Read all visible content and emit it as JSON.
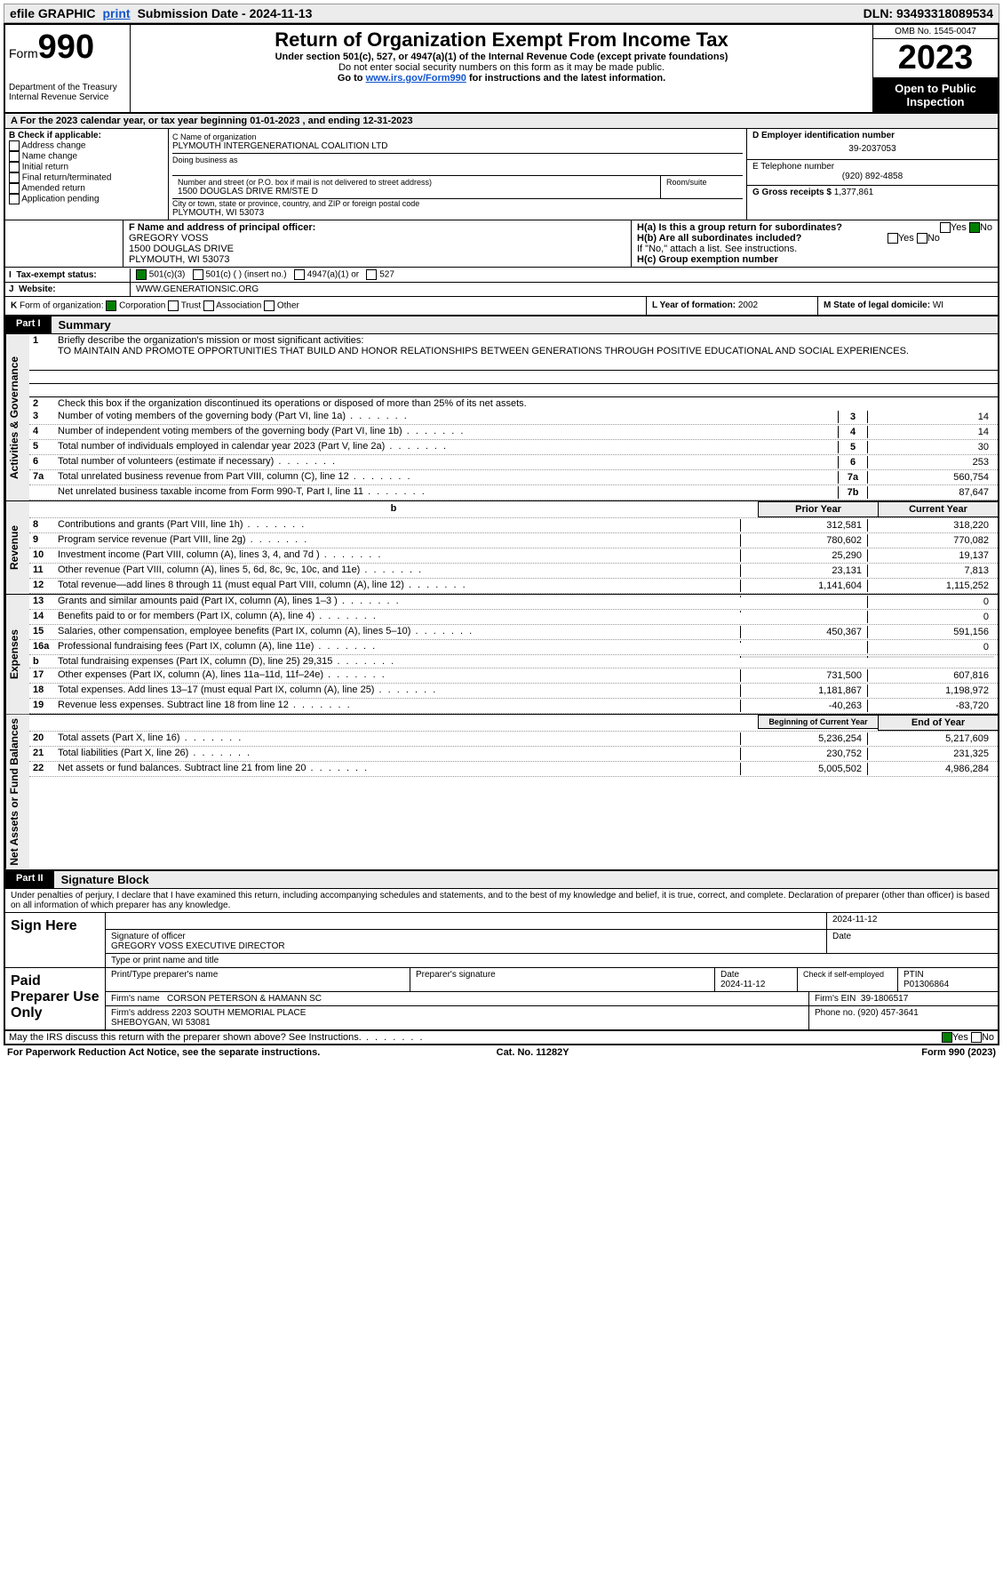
{
  "topbar": {
    "efile": "efile GRAPHIC",
    "print": "print",
    "submission_label": "Submission Date - ",
    "submission_date": "2024-11-13",
    "dln_label": "DLN: ",
    "dln": "93493318089534"
  },
  "header": {
    "form_word": "Form",
    "form990": "990",
    "dept": "Department of the Treasury\nInternal Revenue Service",
    "title": "Return of Organization Exempt From Income Tax",
    "sub1": "Under section 501(c), 527, or 4947(a)(1) of the Internal Revenue Code (except private foundations)",
    "sub2": "Do not enter social security numbers on this form as it may be made public.",
    "sub3_pre": "Go to ",
    "sub3_link": "www.irs.gov/Form990",
    "sub3_post": " for instructions and the latest information.",
    "omb": "OMB No. 1545-0047",
    "year": "2023",
    "open": "Open to Public Inspection"
  },
  "taxyear": {
    "label_a": "A For the 2023 calendar year, or tax year beginning ",
    "begin": "01-01-2023",
    "mid": " , and ending ",
    "end": "12-31-2023"
  },
  "boxB": {
    "label": "B Check if applicable:",
    "opts": [
      "Address change",
      "Name change",
      "Initial return",
      "Final return/terminated",
      "Amended return",
      "Application pending"
    ]
  },
  "boxC": {
    "name_label": "C Name of organization",
    "name": "PLYMOUTH INTERGENERATIONAL COALITION LTD",
    "dba_label": "Doing business as",
    "street_label": "Number and street (or P.O. box if mail is not delivered to street address)",
    "suite_label": "Room/suite",
    "street": "1500 DOUGLAS DRIVE RM/STE D",
    "city_label": "City or town, state or province, country, and ZIP or foreign postal code",
    "city": "PLYMOUTH, WI  53073"
  },
  "boxD": {
    "label": "D Employer identification number",
    "ein": "39-2037053"
  },
  "boxE": {
    "label": "E Telephone number",
    "phone": "(920) 892-4858"
  },
  "boxG": {
    "label": "G Gross receipts $ ",
    "val": "1,377,861"
  },
  "boxF": {
    "label": "F Name and address of principal officer:",
    "name": "GREGORY VOSS",
    "addr1": "1500 DOUGLAS DRIVE",
    "addr2": "PLYMOUTH, WI  53073"
  },
  "boxH": {
    "a": "H(a)  Is this a group return for subordinates?",
    "b": "H(b)  Are all subordinates included?",
    "b_note": "If \"No,\" attach a list. See instructions.",
    "c": "H(c)  Group exemption number",
    "yes": "Yes",
    "no": "No"
  },
  "boxI": {
    "label": "Tax-exempt status:",
    "o1": "501(c)(3)",
    "o2": "501(c) (  ) (insert no.)",
    "o3": "4947(a)(1) or",
    "o4": "527"
  },
  "boxJ": {
    "label": "Website:",
    "val": "WWW.GENERATIONSIC.ORG"
  },
  "boxK": {
    "label": "Form of organization:",
    "o1": "Corporation",
    "o2": "Trust",
    "o3": "Association",
    "o4": "Other"
  },
  "boxL": {
    "label": "L Year of formation: ",
    "val": "2002"
  },
  "boxM": {
    "label": "M State of legal domicile: ",
    "val": "WI"
  },
  "part1": {
    "label": "Part I",
    "title": "Summary"
  },
  "vlabels": {
    "ag": "Activities & Governance",
    "rev": "Revenue",
    "exp": "Expenses",
    "na": "Net Assets or Fund Balances"
  },
  "l1": {
    "desc": "Briefly describe the organization's mission or most significant activities:",
    "text": "TO MAINTAIN AND PROMOTE OPPORTUNITIES THAT BUILD AND HONOR RELATIONSHIPS BETWEEN GENERATIONS THROUGH POSITIVE EDUCATIONAL AND SOCIAL EXPERIENCES."
  },
  "l2": "Check this box      if the organization discontinued its operations or disposed of more than 25% of its net assets.",
  "lines_ag": [
    {
      "n": "3",
      "d": "Number of voting members of the governing body (Part VI, line 1a)",
      "c": "3",
      "v": "14"
    },
    {
      "n": "4",
      "d": "Number of independent voting members of the governing body (Part VI, line 1b)",
      "c": "4",
      "v": "14"
    },
    {
      "n": "5",
      "d": "Total number of individuals employed in calendar year 2023 (Part V, line 2a)",
      "c": "5",
      "v": "30"
    },
    {
      "n": "6",
      "d": "Total number of volunteers (estimate if necessary)",
      "c": "6",
      "v": "253"
    },
    {
      "n": "7a",
      "d": "Total unrelated business revenue from Part VIII, column (C), line 12",
      "c": "7a",
      "v": "560,754"
    },
    {
      "n": "",
      "d": "Net unrelated business taxable income from Form 990-T, Part I, line 11",
      "c": "7b",
      "v": "87,647"
    }
  ],
  "head_py": "Prior Year",
  "head_cy": "Current Year",
  "lines_rev": [
    {
      "n": "8",
      "d": "Contributions and grants (Part VIII, line 1h)",
      "py": "312,581",
      "cy": "318,220"
    },
    {
      "n": "9",
      "d": "Program service revenue (Part VIII, line 2g)",
      "py": "780,602",
      "cy": "770,082"
    },
    {
      "n": "10",
      "d": "Investment income (Part VIII, column (A), lines 3, 4, and 7d )",
      "py": "25,290",
      "cy": "19,137"
    },
    {
      "n": "11",
      "d": "Other revenue (Part VIII, column (A), lines 5, 6d, 8c, 9c, 10c, and 11e)",
      "py": "23,131",
      "cy": "7,813"
    },
    {
      "n": "12",
      "d": "Total revenue—add lines 8 through 11 (must equal Part VIII, column (A), line 12)",
      "py": "1,141,604",
      "cy": "1,115,252"
    }
  ],
  "lines_exp": [
    {
      "n": "13",
      "d": "Grants and similar amounts paid (Part IX, column (A), lines 1–3 )",
      "py": "",
      "cy": "0"
    },
    {
      "n": "14",
      "d": "Benefits paid to or for members (Part IX, column (A), line 4)",
      "py": "",
      "cy": "0"
    },
    {
      "n": "15",
      "d": "Salaries, other compensation, employee benefits (Part IX, column (A), lines 5–10)",
      "py": "450,367",
      "cy": "591,156"
    },
    {
      "n": "16a",
      "d": "Professional fundraising fees (Part IX, column (A), line 11e)",
      "py": "",
      "cy": "0"
    },
    {
      "n": "b",
      "d": "Total fundraising expenses (Part IX, column (D), line 25) 29,315",
      "py": "SHADE",
      "cy": "SHADE"
    },
    {
      "n": "17",
      "d": "Other expenses (Part IX, column (A), lines 11a–11d, 11f–24e)",
      "py": "731,500",
      "cy": "607,816"
    },
    {
      "n": "18",
      "d": "Total expenses. Add lines 13–17 (must equal Part IX, column (A), line 25)",
      "py": "1,181,867",
      "cy": "1,198,972"
    },
    {
      "n": "19",
      "d": "Revenue less expenses. Subtract line 18 from line 12",
      "py": "-40,263",
      "cy": "-83,720"
    }
  ],
  "head_by": "Beginning of Current Year",
  "head_ey": "End of Year",
  "lines_na": [
    {
      "n": "20",
      "d": "Total assets (Part X, line 16)",
      "py": "5,236,254",
      "cy": "5,217,609"
    },
    {
      "n": "21",
      "d": "Total liabilities (Part X, line 26)",
      "py": "230,752",
      "cy": "231,325"
    },
    {
      "n": "22",
      "d": "Net assets or fund balances. Subtract line 21 from line 20",
      "py": "5,005,502",
      "cy": "4,986,284"
    }
  ],
  "part2": {
    "label": "Part II",
    "title": "Signature Block"
  },
  "penalties": "Under penalties of perjury, I declare that I have examined this return, including accompanying schedules and statements, and to the best of my knowledge and belief, it is true, correct, and complete. Declaration of preparer (other than officer) is based on all information of which preparer has any knowledge.",
  "sign": {
    "here": "Sign Here",
    "date": "2024-11-12",
    "sig_label": "Signature of officer",
    "date_label": "Date",
    "officer": "GREGORY VOSS  EXECUTIVE DIRECTOR",
    "type_label": "Type or print name and title"
  },
  "paid": {
    "label": "Paid Preparer Use Only",
    "h1": "Print/Type preparer's name",
    "h2": "Preparer's signature",
    "h3": "Date",
    "date": "2024-11-12",
    "h4": "Check      if self-employed",
    "h5": "PTIN",
    "ptin": "P01306864",
    "firm_name_l": "Firm's name",
    "firm_name": "CORSON PETERSON & HAMANN SC",
    "firm_ein_l": "Firm's EIN",
    "firm_ein": "39-1806517",
    "firm_addr_l": "Firm's address",
    "firm_addr": "2203 SOUTH MEMORIAL PLACE\nSHEBOYGAN, WI  53081",
    "phone_l": "Phone no.",
    "phone": "(920) 457-3641"
  },
  "discuss": "May the IRS discuss this return with the preparer shown above? See Instructions.",
  "footer": {
    "left": "For Paperwork Reduction Act Notice, see the separate instructions.",
    "mid": "Cat. No. 11282Y",
    "right": "Form 990 (2023)"
  }
}
